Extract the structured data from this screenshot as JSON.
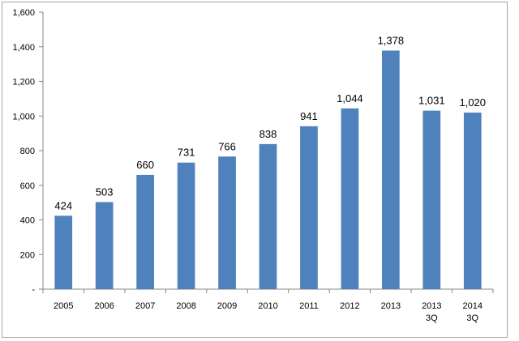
{
  "chart_data": {
    "type": "bar",
    "categories": [
      "2005",
      "2006",
      "2007",
      "2008",
      "2009",
      "2010",
      "2011",
      "2012",
      "2013",
      "2013\n3Q",
      "2014\n3Q"
    ],
    "values": [
      424,
      503,
      660,
      731,
      766,
      838,
      941,
      1044,
      1378,
      1031,
      1020
    ],
    "data_labels": [
      "424",
      "503",
      "660",
      "731",
      "766",
      "838",
      "941",
      "1,044",
      "1,378",
      "1,031",
      "1,020"
    ],
    "y_tick_labels": [
      "-",
      "200",
      "400",
      "600",
      "800",
      "1,000",
      "1,200",
      "1,400",
      "1,600"
    ],
    "ylim": [
      0,
      1600
    ],
    "title": "",
    "xlabel": "",
    "ylabel": "",
    "grid": false,
    "legend": "none",
    "colors": {
      "bar": "#4f81bd",
      "axis": "#868686"
    }
  }
}
